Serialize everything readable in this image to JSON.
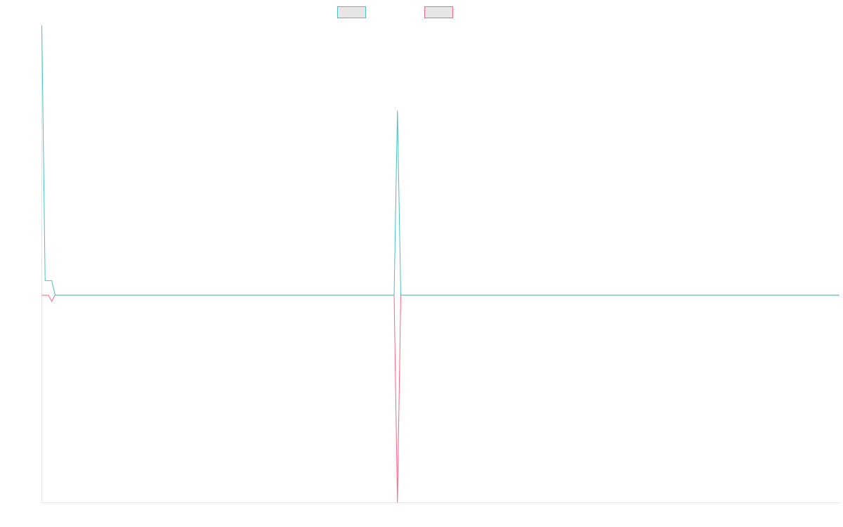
{
  "chart_data": {
    "type": "line",
    "title": "",
    "xlabel": "",
    "ylabel": "",
    "legend_position": "top-center",
    "grid": false,
    "ylim": [
      -1,
      1.3
    ],
    "xlim": [
      0,
      120
    ],
    "x": [
      0,
      0.5,
      1,
      1.5,
      2,
      3,
      4,
      5,
      10,
      20,
      30,
      40,
      50,
      52,
      53,
      53.5,
      54,
      55,
      56,
      60,
      70,
      80,
      90,
      100,
      110,
      120
    ],
    "series": [
      {
        "color": "#4bc0c0",
        "values": [
          1.3,
          0.07,
          0.07,
          0.07,
          0,
          0,
          0,
          0,
          0,
          0,
          0,
          0,
          0,
          0,
          0,
          0.89,
          0,
          0,
          0,
          0,
          0,
          0,
          0,
          0,
          0,
          0
        ]
      },
      {
        "color": "#ff6384",
        "values": [
          0,
          0,
          0,
          -0.03,
          0,
          0,
          0,
          0,
          0,
          0,
          0,
          0,
          0,
          0,
          0,
          -1,
          0,
          0,
          0,
          0,
          0,
          0,
          0,
          0,
          0,
          0
        ]
      }
    ]
  }
}
